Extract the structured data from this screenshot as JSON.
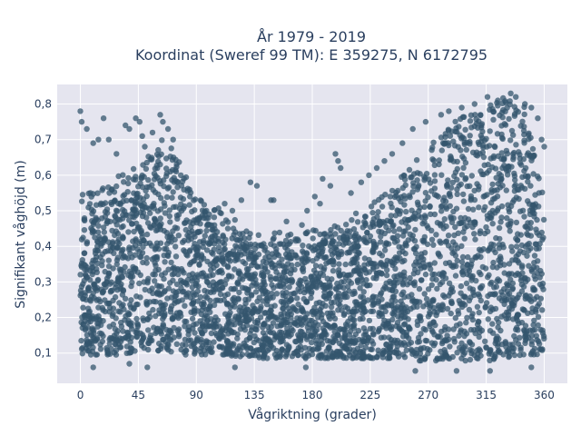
{
  "chart_data": {
    "type": "scatter",
    "title_line1": "År 1979 - 2019",
    "title_line2": "Koordinat (Sweref 99 TM): E 359275, N 6172795",
    "xlabel": "Vågriktning (grader)",
    "ylabel": "Signifikant våghöjd (m)",
    "xlim": [
      -18,
      378
    ],
    "ylim": [
      0.015,
      0.855
    ],
    "x_ticks": [
      0,
      45,
      90,
      135,
      180,
      225,
      270,
      315,
      360
    ],
    "x_tick_labels": [
      "0",
      "45",
      "90",
      "135",
      "180",
      "225",
      "270",
      "315",
      "360"
    ],
    "y_ticks": [
      0.1,
      0.2,
      0.3,
      0.4,
      0.5,
      0.6,
      0.7,
      0.8
    ],
    "y_tick_labels": [
      "0,1",
      "0,2",
      "0,3",
      "0,4",
      "0,5",
      "0,6",
      "0,7",
      "0,8"
    ],
    "grid": true,
    "marker_color": "#34566e",
    "marker_opacity": 0.75,
    "envelope": {
      "direction_deg": [
        0,
        15,
        30,
        45,
        60,
        65,
        75,
        90,
        110,
        135,
        160,
        180,
        200,
        225,
        250,
        270,
        290,
        315,
        330,
        345,
        360
      ],
      "dense_upper_m": [
        0.5,
        0.52,
        0.55,
        0.58,
        0.64,
        0.66,
        0.6,
        0.5,
        0.45,
        0.39,
        0.39,
        0.4,
        0.42,
        0.47,
        0.55,
        0.63,
        0.7,
        0.75,
        0.77,
        0.76,
        0.5
      ],
      "lower_m": [
        0.08,
        0.08,
        0.08,
        0.09,
        0.09,
        0.09,
        0.08,
        0.08,
        0.08,
        0.07,
        0.07,
        0.07,
        0.07,
        0.07,
        0.07,
        0.06,
        0.06,
        0.06,
        0.07,
        0.08,
        0.08
      ]
    },
    "outliers": [
      [
        0,
        0.78
      ],
      [
        1,
        0.75
      ],
      [
        5,
        0.73
      ],
      [
        10,
        0.69
      ],
      [
        14,
        0.7
      ],
      [
        18,
        0.76
      ],
      [
        22,
        0.7
      ],
      [
        28,
        0.66
      ],
      [
        35,
        0.74
      ],
      [
        38,
        0.73
      ],
      [
        43,
        0.76
      ],
      [
        46,
        0.75
      ],
      [
        48,
        0.71
      ],
      [
        50,
        0.68
      ],
      [
        56,
        0.72
      ],
      [
        62,
        0.77
      ],
      [
        64,
        0.75
      ],
      [
        68,
        0.73
      ],
      [
        72,
        0.7
      ],
      [
        78,
        0.6
      ],
      [
        85,
        0.54
      ],
      [
        100,
        0.49
      ],
      [
        112,
        0.52
      ],
      [
        118,
        0.5
      ],
      [
        125,
        0.53
      ],
      [
        132,
        0.58
      ],
      [
        137,
        0.57
      ],
      [
        148,
        0.53
      ],
      [
        150,
        0.53
      ],
      [
        160,
        0.47
      ],
      [
        172,
        0.46
      ],
      [
        176,
        0.5
      ],
      [
        182,
        0.54
      ],
      [
        186,
        0.52
      ],
      [
        188,
        0.59
      ],
      [
        194,
        0.57
      ],
      [
        198,
        0.66
      ],
      [
        200,
        0.64
      ],
      [
        202,
        0.62
      ],
      [
        210,
        0.55
      ],
      [
        218,
        0.58
      ],
      [
        224,
        0.6
      ],
      [
        230,
        0.62
      ],
      [
        236,
        0.64
      ],
      [
        242,
        0.66
      ],
      [
        250,
        0.69
      ],
      [
        258,
        0.73
      ],
      [
        268,
        0.75
      ],
      [
        280,
        0.77
      ],
      [
        286,
        0.78
      ],
      [
        296,
        0.79
      ],
      [
        306,
        0.8
      ],
      [
        316,
        0.82
      ],
      [
        324,
        0.81
      ],
      [
        334,
        0.83
      ],
      [
        338,
        0.82
      ],
      [
        345,
        0.8
      ],
      [
        350,
        0.79
      ],
      [
        355,
        0.76
      ],
      [
        358,
        0.7
      ],
      [
        360,
        0.68
      ],
      [
        10,
        0.06
      ],
      [
        38,
        0.07
      ],
      [
        52,
        0.06
      ],
      [
        120,
        0.06
      ],
      [
        175,
        0.06
      ],
      [
        260,
        0.05
      ],
      [
        292,
        0.05
      ],
      [
        318,
        0.05
      ],
      [
        350,
        0.06
      ]
    ]
  }
}
